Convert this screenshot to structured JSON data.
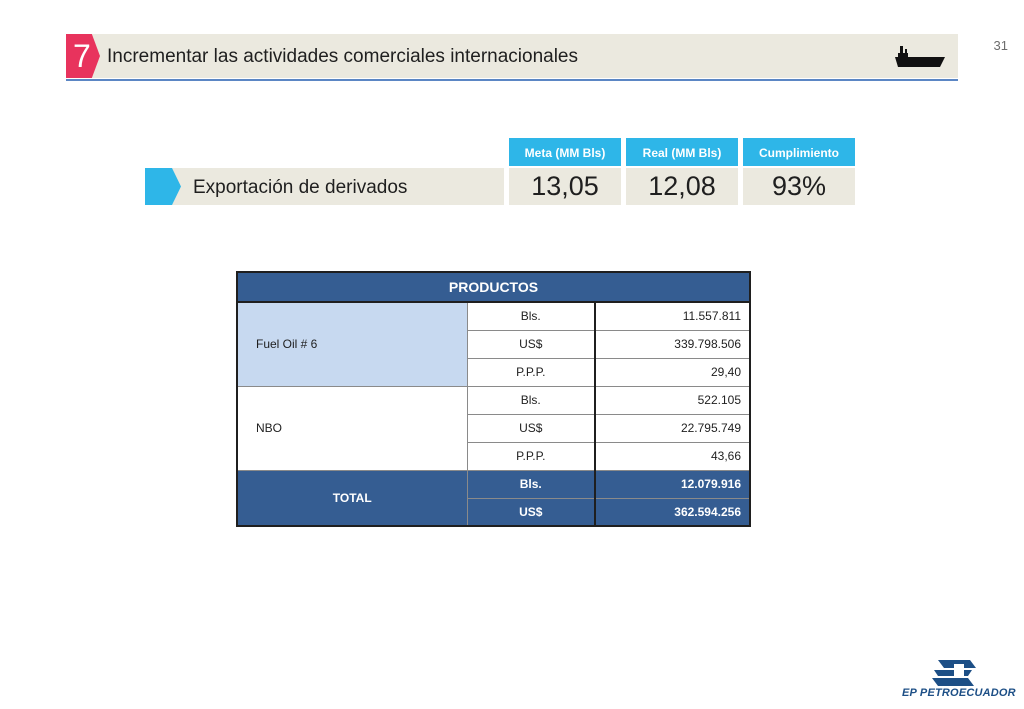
{
  "page_number": "31",
  "header": {
    "number": "7",
    "title": "Incrementar las actividades comerciales internacionales",
    "icon": "ship-icon"
  },
  "kpi": {
    "label": "Exportación de derivados",
    "columns": [
      {
        "header": "Meta (MM Bls)",
        "value": "13,05"
      },
      {
        "header": "Real (MM Bls)",
        "value": "12,08"
      },
      {
        "header": "Cumplimiento",
        "value": "93%"
      }
    ]
  },
  "table": {
    "header": "PRODUCTOS",
    "groups": [
      {
        "name": "Fuel Oil # 6",
        "rows": [
          {
            "unit": "Bls.",
            "value": "11.557.811"
          },
          {
            "unit": "US$",
            "value": "339.798.506"
          },
          {
            "unit": "P.P.P.",
            "value": "29,40"
          }
        ]
      },
      {
        "name": "NBO",
        "rows": [
          {
            "unit": "Bls.",
            "value": "522.105"
          },
          {
            "unit": "US$",
            "value": "22.795.749"
          },
          {
            "unit": "P.P.P.",
            "value": "43,66"
          }
        ]
      }
    ],
    "total": {
      "name": "TOTAL",
      "rows": [
        {
          "unit": "Bls.",
          "value": "12.079.916"
        },
        {
          "unit": "US$",
          "value": "362.594.256"
        }
      ]
    }
  },
  "logo": {
    "text": "EP PETROECUADOR"
  },
  "colors": {
    "accent_pink": "#e8335d",
    "accent_cyan": "#2eb6e8",
    "table_blue": "#355d92",
    "table_light_blue": "#c7d9f0",
    "bar_beige": "#ebe9df"
  }
}
